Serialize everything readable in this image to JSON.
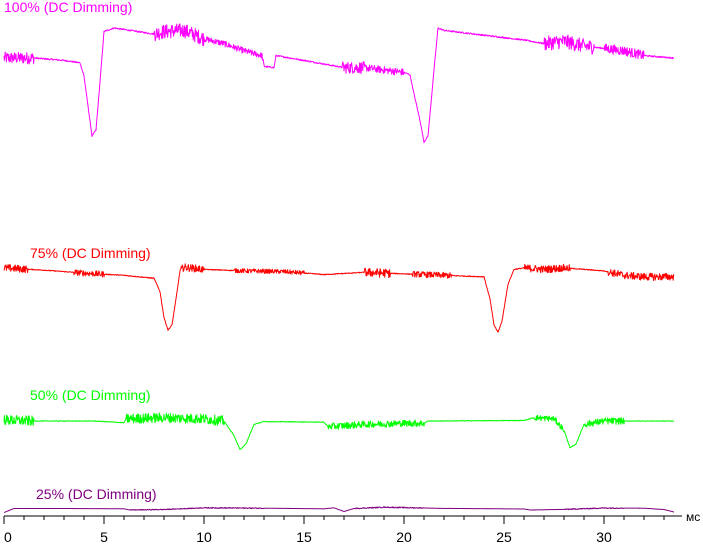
{
  "chart_data": {
    "type": "line",
    "xunit": "мс",
    "xlim": [
      0,
      33.5
    ],
    "xticks": [
      0,
      5,
      10,
      15,
      20,
      25,
      30
    ],
    "grid": false,
    "legend": "none",
    "series": [
      {
        "name": "100% (DC Dimming)",
        "color": "#ff00ff",
        "row": 0,
        "points": [
          [
            0,
            0.7
          ],
          [
            1.5,
            0.7
          ],
          [
            3.0,
            0.68
          ],
          [
            3.8,
            0.66
          ],
          [
            4.0,
            0.55
          ],
          [
            4.2,
            0.3
          ],
          [
            4.4,
            0.05
          ],
          [
            4.6,
            0.1
          ],
          [
            4.8,
            0.5
          ],
          [
            5.0,
            0.92
          ],
          [
            5.5,
            0.95
          ],
          [
            7.5,
            0.9
          ],
          [
            8.0,
            0.92
          ],
          [
            9.0,
            0.93
          ],
          [
            10.0,
            0.86
          ],
          [
            11.0,
            0.82
          ],
          [
            12.0,
            0.76
          ],
          [
            12.9,
            0.72
          ],
          [
            13.0,
            0.63
          ],
          [
            13.5,
            0.62
          ],
          [
            13.6,
            0.72
          ],
          [
            15.0,
            0.68
          ],
          [
            17.0,
            0.62
          ],
          [
            18.0,
            0.62
          ],
          [
            20.0,
            0.58
          ],
          [
            20.3,
            0.56
          ],
          [
            20.5,
            0.4
          ],
          [
            20.8,
            0.18
          ],
          [
            21.0,
            0.0
          ],
          [
            21.2,
            0.05
          ],
          [
            21.5,
            0.6
          ],
          [
            21.7,
            0.95
          ],
          [
            22.0,
            0.93
          ],
          [
            24.0,
            0.89
          ],
          [
            26.0,
            0.85
          ],
          [
            27.0,
            0.82
          ],
          [
            28.0,
            0.84
          ],
          [
            29.0,
            0.8
          ],
          [
            30.0,
            0.78
          ],
          [
            31.0,
            0.76
          ],
          [
            32.0,
            0.72
          ],
          [
            33.5,
            0.7
          ]
        ],
        "noise": [
          [
            0,
            1.5,
            0.05
          ],
          [
            7.5,
            10,
            0.06
          ],
          [
            10,
            13,
            0.025
          ],
          [
            16.9,
            18,
            0.05
          ],
          [
            18,
            20,
            0.03
          ],
          [
            27,
            29.5,
            0.06
          ],
          [
            30,
            32,
            0.04
          ]
        ]
      },
      {
        "name": "75% (DC Dimming)",
        "color": "#ff0000",
        "row": 1,
        "points": [
          [
            0,
            0.92
          ],
          [
            2.0,
            0.89
          ],
          [
            4.0,
            0.85
          ],
          [
            6.0,
            0.82
          ],
          [
            7.5,
            0.78
          ],
          [
            7.8,
            0.6
          ],
          [
            8.0,
            0.25
          ],
          [
            8.2,
            0.08
          ],
          [
            8.4,
            0.15
          ],
          [
            8.6,
            0.5
          ],
          [
            8.8,
            0.88
          ],
          [
            9.0,
            0.93
          ],
          [
            10.0,
            0.9
          ],
          [
            12.0,
            0.88
          ],
          [
            14.0,
            0.87
          ],
          [
            16.0,
            0.83
          ],
          [
            18.0,
            0.86
          ],
          [
            20.0,
            0.84
          ],
          [
            22.0,
            0.82
          ],
          [
            24.0,
            0.8
          ],
          [
            24.3,
            0.5
          ],
          [
            24.5,
            0.15
          ],
          [
            24.7,
            0.05
          ],
          [
            24.9,
            0.2
          ],
          [
            25.2,
            0.7
          ],
          [
            25.5,
            0.9
          ],
          [
            26.0,
            0.92
          ],
          [
            27.0,
            0.9
          ],
          [
            28.0,
            0.92
          ],
          [
            29.0,
            0.9
          ],
          [
            30.0,
            0.88
          ],
          [
            31.0,
            0.82
          ],
          [
            32.0,
            0.8
          ],
          [
            33.5,
            0.8
          ]
        ],
        "noise": [
          [
            0,
            1.2,
            0.05
          ],
          [
            3.5,
            5,
            0.04
          ],
          [
            8.8,
            10,
            0.05
          ],
          [
            11.5,
            15,
            0.03
          ],
          [
            18,
            19.3,
            0.06
          ],
          [
            20.4,
            22.4,
            0.04
          ],
          [
            26,
            28.3,
            0.05
          ],
          [
            30.2,
            33.5,
            0.05
          ]
        ]
      },
      {
        "name": "50% (DC Dimming)",
        "color": "#00ff00",
        "row": 2,
        "points": [
          [
            0,
            0.68
          ],
          [
            1.5,
            0.66
          ],
          [
            4.5,
            0.66
          ],
          [
            6.0,
            0.63
          ],
          [
            6.1,
            0.7
          ],
          [
            8.0,
            0.72
          ],
          [
            10.0,
            0.7
          ],
          [
            11.0,
            0.66
          ],
          [
            11.5,
            0.4
          ],
          [
            11.8,
            0.15
          ],
          [
            12.1,
            0.25
          ],
          [
            12.5,
            0.6
          ],
          [
            13.0,
            0.65
          ],
          [
            16.0,
            0.64
          ],
          [
            16.2,
            0.56
          ],
          [
            18.0,
            0.6
          ],
          [
            20.0,
            0.62
          ],
          [
            21.0,
            0.62
          ],
          [
            21.2,
            0.66
          ],
          [
            26.0,
            0.67
          ],
          [
            26.5,
            0.72
          ],
          [
            27.5,
            0.7
          ],
          [
            28.0,
            0.5
          ],
          [
            28.3,
            0.18
          ],
          [
            28.6,
            0.25
          ],
          [
            29.0,
            0.6
          ],
          [
            30.0,
            0.66
          ],
          [
            33.5,
            0.66
          ]
        ],
        "noise": [
          [
            0,
            1.5,
            0.09
          ],
          [
            6.1,
            11,
            0.09
          ],
          [
            16.2,
            21,
            0.06
          ],
          [
            26.5,
            28,
            0.05
          ],
          [
            29,
            31,
            0.06
          ]
        ]
      },
      {
        "name": "25% (DC Dimming)",
        "color": "#800080",
        "row": 3,
        "points": [
          [
            0,
            0.15
          ],
          [
            0.5,
            0.55
          ],
          [
            3.0,
            0.55
          ],
          [
            6.0,
            0.52
          ],
          [
            6.3,
            0.4
          ],
          [
            8.0,
            0.45
          ],
          [
            10.0,
            0.62
          ],
          [
            13.0,
            0.58
          ],
          [
            16.0,
            0.52
          ],
          [
            16.5,
            0.62
          ],
          [
            17.0,
            0.25
          ],
          [
            17.5,
            0.55
          ],
          [
            19.0,
            0.68
          ],
          [
            22.0,
            0.56
          ],
          [
            25.0,
            0.52
          ],
          [
            26.0,
            0.5
          ],
          [
            26.3,
            0.4
          ],
          [
            28.0,
            0.46
          ],
          [
            30.0,
            0.6
          ],
          [
            32.0,
            0.58
          ],
          [
            33.0,
            0.45
          ],
          [
            33.5,
            0.2
          ]
        ],
        "noise": [
          [
            6.3,
            10,
            0.04
          ],
          [
            10,
            13,
            0.05
          ],
          [
            17.5,
            21,
            0.05
          ],
          [
            28,
            31,
            0.05
          ]
        ]
      }
    ]
  }
}
